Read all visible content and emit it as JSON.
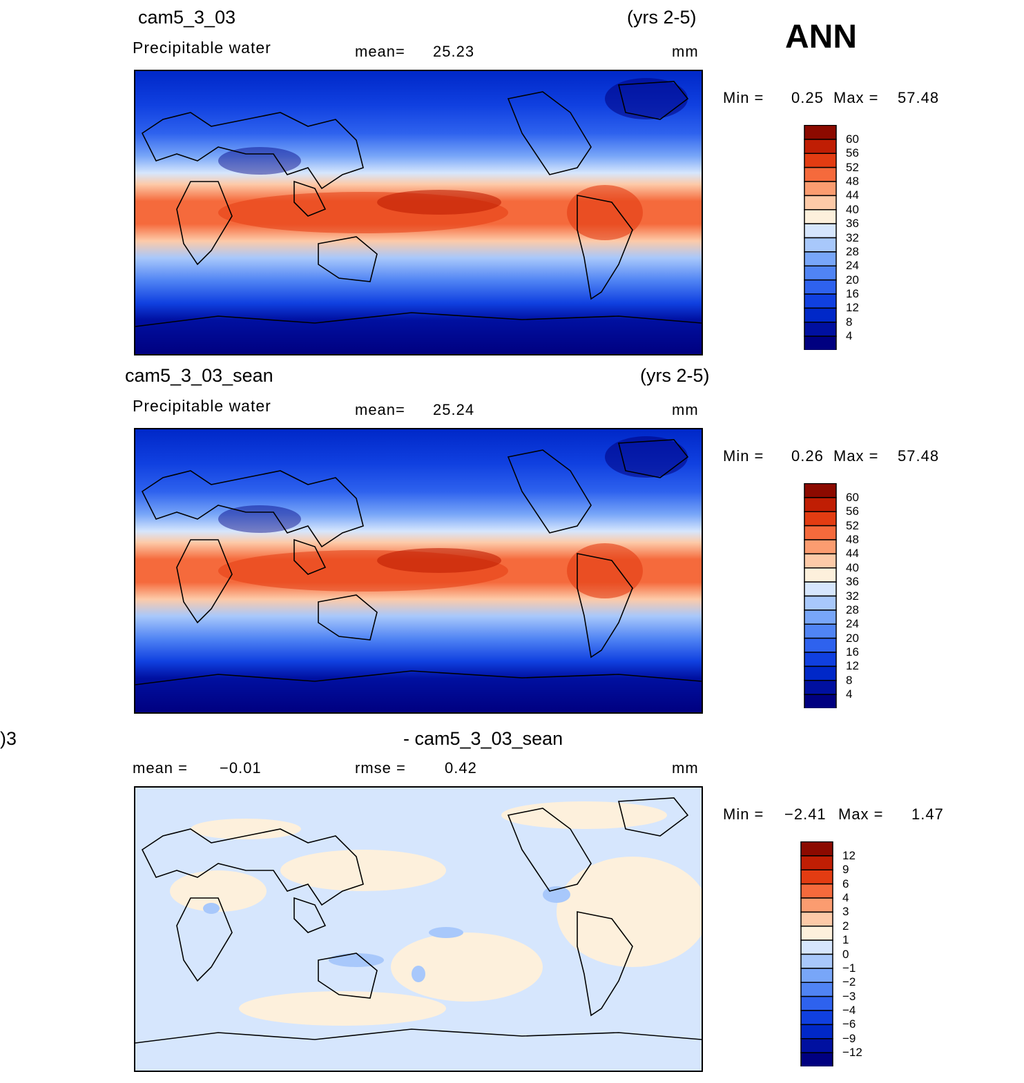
{
  "season": "ANN",
  "panels": [
    {
      "case": "cam5_3_03",
      "years": "(yrs 2-5)",
      "variable": "Precipitable  water",
      "mean_label": "mean=",
      "mean_value": "25.23",
      "units": "mm",
      "min_label": "Min  =",
      "min_value": "0.25",
      "max_label": "Max  =",
      "max_value": "57.48",
      "colorbar": [
        "60",
        "56",
        "52",
        "48",
        "44",
        "40",
        "36",
        "32",
        "28",
        "24",
        "20",
        "16",
        "12",
        "8",
        "4"
      ]
    },
    {
      "case": "cam5_3_03_sean",
      "years": "(yrs 2-5)",
      "variable": "Precipitable  water",
      "mean_label": "mean=",
      "mean_value": "25.24",
      "units": "mm",
      "min_label": "Min  =",
      "min_value": "0.26",
      "max_label": "Max  =",
      "max_value": "57.48",
      "colorbar": [
        "60",
        "56",
        "52",
        "48",
        "44",
        "40",
        "36",
        "32",
        "28",
        "24",
        "20",
        "16",
        "12",
        "8",
        "4"
      ]
    },
    {
      "case_left": ")3",
      "case_right": "- cam5_3_03_sean",
      "mean_label": "mean  =",
      "mean_value": "−0.01",
      "rmse_label": "rmse  =",
      "rmse_value": "0.42",
      "units": "mm",
      "min_label": "Min  =",
      "min_value": "−2.41",
      "max_label": "Max  =",
      "max_value": "1.47",
      "colorbar": [
        "12",
        "9",
        "6",
        "4",
        "3",
        "2",
        "1",
        "0",
        "−1",
        "−2",
        "−3",
        "−4",
        "−6",
        "−9",
        "−12"
      ]
    }
  ],
  "colors": {
    "abs_scale": [
      "#000080",
      "#0010a0",
      "#0028c8",
      "#1040e0",
      "#2e62ee",
      "#5084f4",
      "#78a6f8",
      "#a8c8fb",
      "#d6e6fd",
      "#fdf0dc",
      "#fdcaa8",
      "#fb9c70",
      "#f56a3c",
      "#e33c12",
      "#c01e04",
      "#8c0a00"
    ],
    "diff_scale": [
      "#000080",
      "#0010a0",
      "#0028c8",
      "#1040e0",
      "#2e62ee",
      "#5084f4",
      "#78a6f8",
      "#a8c8fb",
      "#d6e6fd",
      "#fdf0dc",
      "#fdcaa8",
      "#fb9c70",
      "#f56a3c",
      "#e33c12",
      "#c01e04",
      "#8c0a00"
    ]
  }
}
